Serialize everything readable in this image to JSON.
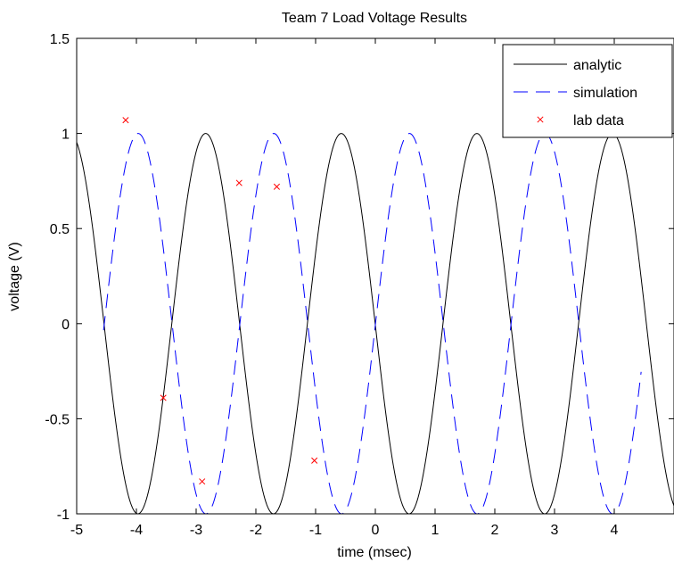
{
  "chart_data": {
    "type": "line",
    "title": "Team 7 Load Voltage Results",
    "xlabel": "time (msec)",
    "ylabel": "voltage (V)",
    "xlim": [
      -5,
      5
    ],
    "ylim": [
      -1,
      1.5
    ],
    "xticks": [
      -5,
      -4,
      -3,
      -2,
      -1,
      0,
      1,
      2,
      3,
      4
    ],
    "xtick_labels": [
      "-5",
      "-4",
      "-3",
      "-2",
      "-1",
      "0",
      "1",
      "2",
      "3",
      "4"
    ],
    "yticks": [
      -1,
      -0.5,
      0,
      0.5,
      1,
      1.5
    ],
    "ytick_labels": [
      "-1",
      "-0.5",
      "0",
      "0.5",
      "1",
      "1.5"
    ],
    "grid": false,
    "legend_position": "top-right",
    "series": [
      {
        "name": "analytic",
        "style": "solid",
        "color": "#000000",
        "model": {
          "form": "amplitude*cos(2*pi*(x - peak_at)/period)",
          "amplitude": 1,
          "period": 2.27,
          "peak_at": -0.57
        },
        "x_range": [
          -5,
          5
        ]
      },
      {
        "name": "simulation",
        "style": "dashed",
        "color": "#0000ff",
        "model": {
          "form": "amplitude*cos(2*pi*(x - peak_at)/period)",
          "amplitude": 1,
          "period": 2.27,
          "peak_at": 0.57
        },
        "x_range": [
          -4.55,
          4.45
        ]
      },
      {
        "name": "lab data",
        "style": "marker-x",
        "color": "#ff0000",
        "x": [
          -4.18,
          -3.55,
          -2.9,
          -2.28,
          -1.65,
          -1.02
        ],
        "y": [
          1.07,
          -0.39,
          -0.83,
          0.74,
          0.72,
          -0.72
        ]
      }
    ]
  }
}
